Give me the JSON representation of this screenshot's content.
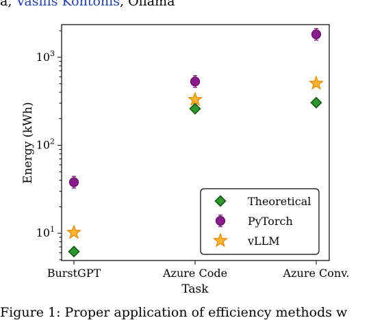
{
  "header": {
    "link_text": "Vasilis Kontonis",
    "rest_text": ", Ollama",
    "lead_text": "a, "
  },
  "caption": {
    "text": "Figure 1: Proper application of efficiency methods w"
  },
  "chart_data": {
    "type": "scatter",
    "title": "",
    "xlabel": "Task",
    "ylabel": "Energy (kWh)",
    "y_scale": "log",
    "categories": [
      "BurstGPT",
      "Azure Code",
      "Azure Conv."
    ],
    "y_ticks": [
      {
        "value": 10,
        "base": "10",
        "exp": "1"
      },
      {
        "value": 100,
        "base": "10",
        "exp": "2"
      },
      {
        "value": 1000,
        "base": "10",
        "exp": "3"
      }
    ],
    "ylim": [
      4.9,
      2350
    ],
    "legend_position": "lower-right",
    "series": [
      {
        "name": "Theoretical",
        "marker": "diamond",
        "color": "#1a8a1a",
        "values": [
          6.2,
          260,
          305
        ]
      },
      {
        "name": "PyTorch",
        "marker": "circle-errorbar",
        "color": "#8b1a8b",
        "values": [
          38,
          530,
          1820
        ]
      },
      {
        "name": "vLLM",
        "marker": "star",
        "color": "#ffaa1a",
        "values": [
          10.2,
          330,
          505
        ]
      }
    ]
  }
}
